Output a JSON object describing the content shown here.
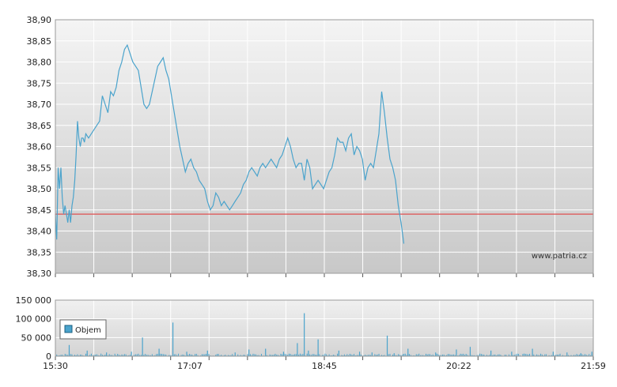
{
  "chart_data": [
    {
      "type": "line",
      "y_ticks": [
        "38,90",
        "38,85",
        "38,80",
        "38,75",
        "38,70",
        "38,65",
        "38,60",
        "38,55",
        "38,50",
        "38,45",
        "38,40",
        "38,35",
        "38,30"
      ],
      "ylim": [
        38.3,
        38.9
      ],
      "x_minutes": [
        930,
        1319
      ],
      "reference_line": 38.44,
      "grid": true,
      "watermark": "www.patria.cz",
      "colors": {
        "price": "#4aa3cc",
        "reference": "#e05050",
        "grid": "#ffffff",
        "bg_top": "#f2f2f2",
        "bg_bottom": "#c9c9c9"
      },
      "series": [
        {
          "points": [
            [
              930,
              38.44
            ],
            [
              931,
              38.38
            ],
            [
              932,
              38.55
            ],
            [
              933,
              38.5
            ],
            [
              934,
              38.55
            ],
            [
              935,
              38.48
            ],
            [
              936,
              38.44
            ],
            [
              937,
              38.46
            ],
            [
              938,
              38.44
            ],
            [
              939,
              38.42
            ],
            [
              940,
              38.45
            ],
            [
              941,
              38.42
            ],
            [
              942,
              38.46
            ],
            [
              943,
              38.48
            ],
            [
              944,
              38.52
            ],
            [
              945,
              38.58
            ],
            [
              946,
              38.66
            ],
            [
              947,
              38.62
            ],
            [
              948,
              38.6
            ],
            [
              949,
              38.62
            ],
            [
              950,
              38.62
            ],
            [
              951,
              38.61
            ],
            [
              952,
              38.63
            ],
            [
              954,
              38.62
            ],
            [
              956,
              38.63
            ],
            [
              958,
              38.64
            ],
            [
              960,
              38.65
            ],
            [
              962,
              38.66
            ],
            [
              964,
              38.72
            ],
            [
              966,
              38.7
            ],
            [
              968,
              38.68
            ],
            [
              970,
              38.73
            ],
            [
              972,
              38.72
            ],
            [
              974,
              38.74
            ],
            [
              976,
              38.78
            ],
            [
              978,
              38.8
            ],
            [
              980,
              38.83
            ],
            [
              982,
              38.84
            ],
            [
              984,
              38.82
            ],
            [
              986,
              38.8
            ],
            [
              988,
              38.79
            ],
            [
              990,
              38.78
            ],
            [
              992,
              38.74
            ],
            [
              994,
              38.7
            ],
            [
              996,
              38.69
            ],
            [
              998,
              38.7
            ],
            [
              1000,
              38.73
            ],
            [
              1002,
              38.76
            ],
            [
              1004,
              38.79
            ],
            [
              1006,
              38.8
            ],
            [
              1008,
              38.81
            ],
            [
              1010,
              38.78
            ],
            [
              1012,
              38.76
            ],
            [
              1014,
              38.72
            ],
            [
              1016,
              38.68
            ],
            [
              1018,
              38.64
            ],
            [
              1020,
              38.6
            ],
            [
              1022,
              38.57
            ],
            [
              1024,
              38.54
            ],
            [
              1026,
              38.56
            ],
            [
              1028,
              38.57
            ],
            [
              1030,
              38.55
            ],
            [
              1032,
              38.54
            ],
            [
              1034,
              38.52
            ],
            [
              1036,
              38.51
            ],
            [
              1038,
              38.5
            ],
            [
              1040,
              38.47
            ],
            [
              1042,
              38.45
            ],
            [
              1044,
              38.46
            ],
            [
              1046,
              38.49
            ],
            [
              1048,
              38.48
            ],
            [
              1050,
              38.46
            ],
            [
              1052,
              38.47
            ],
            [
              1054,
              38.46
            ],
            [
              1056,
              38.45
            ],
            [
              1058,
              38.46
            ],
            [
              1060,
              38.47
            ],
            [
              1062,
              38.48
            ],
            [
              1064,
              38.49
            ],
            [
              1066,
              38.51
            ],
            [
              1068,
              38.52
            ],
            [
              1070,
              38.54
            ],
            [
              1072,
              38.55
            ],
            [
              1074,
              38.54
            ],
            [
              1076,
              38.53
            ],
            [
              1078,
              38.55
            ],
            [
              1080,
              38.56
            ],
            [
              1082,
              38.55
            ],
            [
              1084,
              38.56
            ],
            [
              1086,
              38.57
            ],
            [
              1088,
              38.56
            ],
            [
              1090,
              38.55
            ],
            [
              1092,
              38.57
            ],
            [
              1094,
              38.58
            ],
            [
              1096,
              38.6
            ],
            [
              1098,
              38.62
            ],
            [
              1100,
              38.6
            ],
            [
              1102,
              38.57
            ],
            [
              1104,
              38.55
            ],
            [
              1106,
              38.56
            ],
            [
              1108,
              38.56
            ],
            [
              1110,
              38.52
            ],
            [
              1112,
              38.57
            ],
            [
              1114,
              38.55
            ],
            [
              1116,
              38.5
            ],
            [
              1118,
              38.51
            ],
            [
              1120,
              38.52
            ],
            [
              1122,
              38.51
            ],
            [
              1124,
              38.5
            ],
            [
              1126,
              38.52
            ],
            [
              1128,
              38.54
            ],
            [
              1130,
              38.55
            ],
            [
              1132,
              38.58
            ],
            [
              1134,
              38.62
            ],
            [
              1136,
              38.61
            ],
            [
              1138,
              38.61
            ],
            [
              1140,
              38.59
            ],
            [
              1142,
              38.62
            ],
            [
              1144,
              38.63
            ],
            [
              1146,
              38.58
            ],
            [
              1148,
              38.6
            ],
            [
              1150,
              38.59
            ],
            [
              1152,
              38.57
            ],
            [
              1154,
              38.52
            ],
            [
              1156,
              38.55
            ],
            [
              1158,
              38.56
            ],
            [
              1160,
              38.55
            ],
            [
              1162,
              38.59
            ],
            [
              1164,
              38.63
            ],
            [
              1166,
              38.73
            ],
            [
              1168,
              38.68
            ],
            [
              1170,
              38.62
            ],
            [
              1172,
              38.57
            ],
            [
              1174,
              38.55
            ],
            [
              1176,
              38.52
            ],
            [
              1178,
              38.46
            ],
            [
              1180,
              38.42
            ],
            [
              1182,
              38.37
            ]
          ]
        }
      ]
    },
    {
      "type": "bar",
      "y_ticks": [
        "150 000",
        "100 000",
        "50 000",
        "0"
      ],
      "ylim": [
        0,
        150000
      ],
      "x_ticks": [
        "15:30",
        "17:07",
        "18:45",
        "20:22",
        "21:59"
      ],
      "x_minutes": [
        930,
        1319
      ],
      "legend": {
        "label": "Objem",
        "placement": "top-left"
      },
      "colors": {
        "bar": "#4aa3cc"
      },
      "spikes": [
        [
          940,
          30000
        ],
        [
          953,
          15000
        ],
        [
          967,
          10000
        ],
        [
          985,
          12000
        ],
        [
          993,
          50000
        ],
        [
          1005,
          20000
        ],
        [
          1015,
          90000
        ],
        [
          1025,
          12000
        ],
        [
          1040,
          15000
        ],
        [
          1060,
          10000
        ],
        [
          1070,
          18000
        ],
        [
          1082,
          20000
        ],
        [
          1095,
          12000
        ],
        [
          1105,
          35000
        ],
        [
          1110,
          115000
        ],
        [
          1113,
          15000
        ],
        [
          1120,
          45000
        ],
        [
          1135,
          15000
        ],
        [
          1150,
          12000
        ],
        [
          1159,
          10000
        ],
        [
          1170,
          55000
        ],
        [
          1175,
          8000
        ],
        [
          1185,
          20000
        ],
        [
          1205,
          10000
        ],
        [
          1220,
          18000
        ],
        [
          1230,
          25000
        ],
        [
          1245,
          15000
        ],
        [
          1260,
          12000
        ],
        [
          1275,
          20000
        ],
        [
          1290,
          12000
        ],
        [
          1300,
          10000
        ],
        [
          1310,
          8000
        ],
        [
          1318,
          12000
        ]
      ]
    }
  ]
}
